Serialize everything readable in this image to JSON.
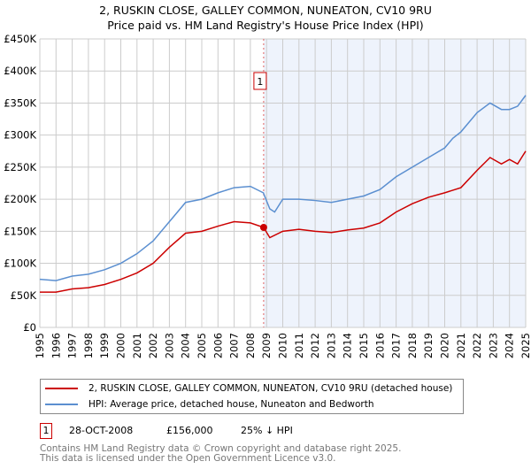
{
  "chart_data": {
    "type": "line",
    "title": "2, RUSKIN CLOSE, GALLEY COMMON, NUNEATON, CV10 9RU",
    "subtitle": "Price paid vs. HM Land Registry's House Price Index (HPI)",
    "xlim": [
      1995,
      2025
    ],
    "ylim": [
      0,
      450000
    ],
    "y_ticks": [
      0,
      50000,
      100000,
      150000,
      200000,
      250000,
      300000,
      350000,
      400000,
      450000
    ],
    "y_tick_labels": [
      "£0",
      "£50K",
      "£100K",
      "£150K",
      "£200K",
      "£250K",
      "£300K",
      "£350K",
      "£400K",
      "£450K"
    ],
    "x_ticks": [
      "1995",
      "1996",
      "1997",
      "1998",
      "1999",
      "2000",
      "2001",
      "2002",
      "2003",
      "2004",
      "2005",
      "2006",
      "2007",
      "2008",
      "2009",
      "2010",
      "2011",
      "2012",
      "2013",
      "2014",
      "2015",
      "2016",
      "2017",
      "2018",
      "2019",
      "2020",
      "2021",
      "2022",
      "2023",
      "2024",
      "2025"
    ],
    "grid": true,
    "series": [
      {
        "name": "2, RUSKIN CLOSE, GALLEY COMMON, NUNEATON, CV10 9RU (detached house)",
        "color": "#cc0000",
        "x": [
          1995,
          1996,
          1997,
          1998,
          1999,
          2000,
          2001,
          2002,
          2003,
          2004,
          2005,
          2006,
          2007,
          2008,
          2008.82,
          2009.2,
          2010,
          2011,
          2012,
          2013,
          2014,
          2015,
          2016,
          2017,
          2018,
          2019,
          2020,
          2021,
          2022,
          2022.8,
          2023.5,
          2024,
          2024.5,
          2025
        ],
        "values": [
          55000,
          55000,
          60000,
          62000,
          67000,
          75000,
          85000,
          100000,
          125000,
          147000,
          150000,
          158000,
          165000,
          163000,
          156000,
          140000,
          150000,
          153000,
          150000,
          148000,
          152000,
          155000,
          163000,
          180000,
          193000,
          203000,
          210000,
          218000,
          245000,
          265000,
          255000,
          262000,
          255000,
          275000
        ]
      },
      {
        "name": "HPI: Average price, detached house, Nuneaton and Bedworth",
        "color": "#5b8fd0",
        "x": [
          1995,
          1996,
          1997,
          1998,
          1999,
          2000,
          2001,
          2002,
          2003,
          2004,
          2005,
          2006,
          2007,
          2008,
          2008.8,
          2009.2,
          2009.5,
          2010,
          2011,
          2012,
          2013,
          2014,
          2015,
          2016,
          2017,
          2018,
          2019,
          2020,
          2020.5,
          2021,
          2022,
          2022.8,
          2023.5,
          2024,
          2024.5,
          2025
        ],
        "values": [
          75000,
          73000,
          80000,
          83000,
          90000,
          100000,
          115000,
          135000,
          165000,
          195000,
          200000,
          210000,
          218000,
          220000,
          210000,
          185000,
          180000,
          200000,
          200000,
          198000,
          195000,
          200000,
          205000,
          215000,
          235000,
          250000,
          265000,
          280000,
          295000,
          305000,
          335000,
          350000,
          340000,
          340000,
          345000,
          362000
        ]
      }
    ],
    "annotations": [
      {
        "label": "1",
        "x": 2008.82,
        "value": 156000
      }
    ]
  },
  "legend": {
    "red": "2, RUSKIN CLOSE, GALLEY COMMON, NUNEATON, CV10 9RU (detached house)",
    "blue": "HPI: Average price, detached house, Nuneaton and Bedworth"
  },
  "sale": {
    "marker": "1",
    "date": "28-OCT-2008",
    "price": "£156,000",
    "hpi": "25% ↓ HPI"
  },
  "footer": {
    "line1": "Contains HM Land Registry data © Crown copyright and database right 2025.",
    "line2": "This data is licensed under the Open Government Licence v3.0."
  }
}
